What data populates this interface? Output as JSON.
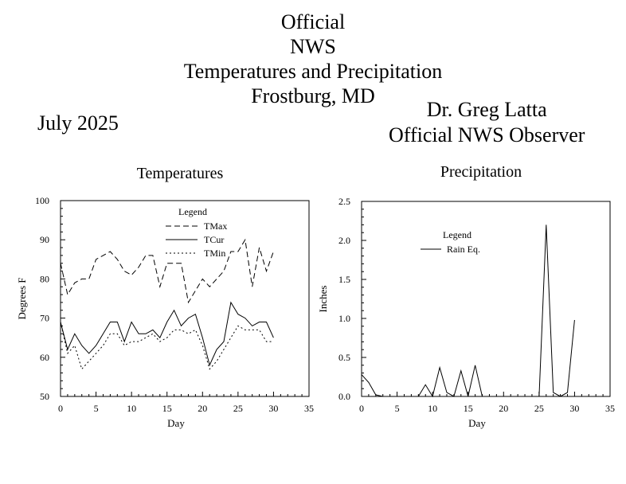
{
  "header": {
    "title_lines": [
      "Official",
      "NWS",
      "Temperatures and Precipitation",
      "Frostburg, MD"
    ],
    "month": "July 2025",
    "observer_name": "Dr. Greg Latta",
    "observer_role": "Official NWS Observer"
  },
  "chart_data": [
    {
      "type": "line",
      "title": "Temperatures",
      "xlabel": "Day",
      "ylabel": "Degrees F",
      "xlim": [
        0,
        35
      ],
      "ylim": [
        50,
        100
      ],
      "xticks": [
        0,
        5,
        10,
        15,
        20,
        25,
        30,
        35
      ],
      "yticks": [
        50,
        60,
        70,
        80,
        90,
        100
      ],
      "legend": {
        "title": "Legend",
        "placement": "top-center"
      },
      "x": [
        0,
        1,
        2,
        3,
        4,
        5,
        6,
        7,
        8,
        9,
        10,
        11,
        12,
        13,
        14,
        15,
        16,
        17,
        18,
        19,
        20,
        21,
        22,
        23,
        24,
        25,
        26,
        27,
        28,
        29,
        30
      ],
      "series": [
        {
          "name": "TMax",
          "style": "dashed",
          "values": [
            84,
            76,
            79,
            80,
            80,
            85,
            86,
            87,
            85,
            82,
            81,
            83,
            86,
            86,
            78,
            84,
            84,
            84,
            74,
            77,
            80,
            78,
            80,
            82,
            87,
            87,
            90,
            78,
            88,
            82,
            87
          ]
        },
        {
          "name": "TCur",
          "style": "solid",
          "values": [
            69,
            62,
            66,
            63,
            61,
            63,
            66,
            69,
            69,
            64,
            69,
            66,
            66,
            67,
            65,
            69,
            72,
            68,
            70,
            71,
            65,
            58,
            62,
            64,
            74,
            71,
            70,
            68,
            69,
            69,
            65
          ]
        },
        {
          "name": "TMin",
          "style": "dotted",
          "values": [
            69,
            61,
            63,
            57,
            59,
            61,
            63,
            66,
            66,
            63,
            64,
            64,
            65,
            66,
            64,
            65,
            67,
            67,
            66,
            67,
            63,
            57,
            59,
            62,
            65,
            68,
            67,
            67,
            67,
            64,
            64
          ]
        }
      ]
    },
    {
      "type": "line",
      "title": "Precipitation",
      "xlabel": "Day",
      "ylabel": "Inches",
      "xlim": [
        0,
        35
      ],
      "ylim": [
        0,
        2.5
      ],
      "xticks": [
        0,
        5,
        10,
        15,
        20,
        25,
        30,
        35
      ],
      "yticks": [
        "0.0",
        "0.5",
        "1.0",
        "1.5",
        "2.0",
        "2.5"
      ],
      "legend": {
        "title": "Legend",
        "placement": "top-center"
      },
      "x": [
        0,
        1,
        2,
        3,
        4,
        5,
        6,
        7,
        8,
        9,
        10,
        11,
        12,
        13,
        14,
        15,
        16,
        17,
        18,
        19,
        20,
        21,
        22,
        23,
        24,
        25,
        26,
        27,
        28,
        29,
        30
      ],
      "series": [
        {
          "name": "Rain Eq.",
          "style": "solid",
          "values": [
            0.28,
            0.18,
            0.02,
            0,
            0,
            0,
            0,
            0,
            0,
            0.15,
            0,
            0.37,
            0.05,
            0,
            0.33,
            0,
            0.4,
            0,
            0,
            0,
            0,
            0,
            0,
            0,
            0,
            0,
            2.2,
            0.05,
            0,
            0.05,
            0.98
          ]
        }
      ]
    }
  ]
}
